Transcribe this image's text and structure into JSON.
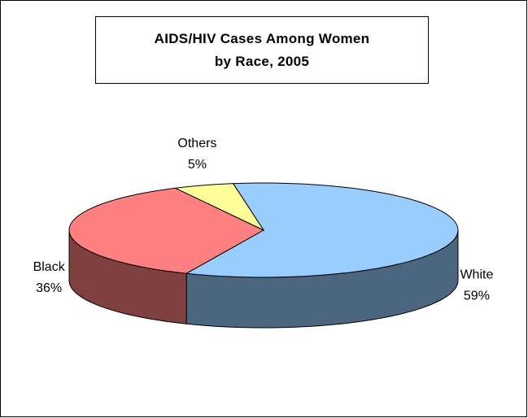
{
  "chart_data": {
    "type": "pie",
    "title": "AIDS/HIV Cases Among Women by Race, 2005",
    "categories": [
      "White",
      "Black",
      "Others"
    ],
    "values": [
      59,
      36,
      5
    ],
    "value_labels": [
      "59%",
      "36%",
      "5%"
    ],
    "colors": [
      "#99ccff",
      "#ff8080",
      "#ffff99"
    ]
  }
}
